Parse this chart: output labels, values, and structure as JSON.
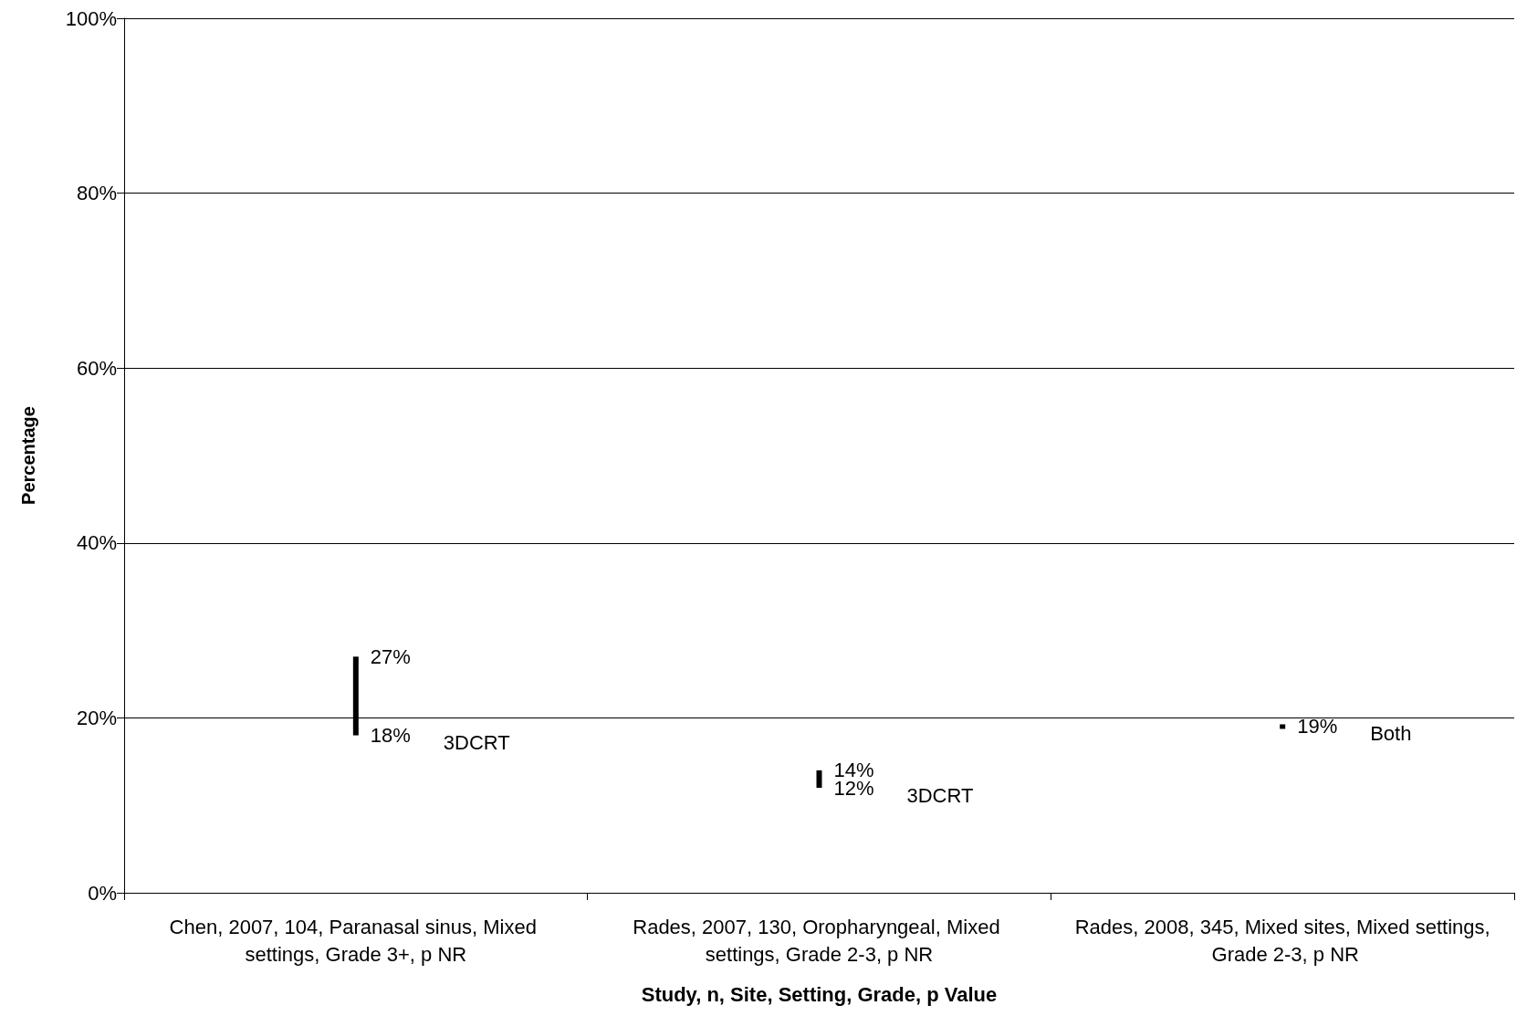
{
  "chart_data": {
    "type": "bar",
    "categories": [
      "Chen, 2007, 104, Paranasal sinus, Mixed settings, Grade 3+, p NR",
      "Rades, 2007, 130, Oropharyngeal, Mixed settings, Grade 2-3, p NR",
      "Rades, 2008, 345, Mixed sites, Mixed settings, Grade 2-3, p NR"
    ],
    "base": [
      18,
      12,
      19
    ],
    "values": [
      9,
      2,
      0
    ],
    "color": "#000000",
    "xlabel": "Study, n, Site, Setting, Grade, p Value",
    "ylabel": "Percentage",
    "ylim": [
      0,
      100
    ],
    "yticks": [
      {
        "value": 0,
        "label": "0%"
      },
      {
        "value": 20,
        "label": "20%"
      },
      {
        "value": 40,
        "label": "40%"
      },
      {
        "value": 60,
        "label": "60%"
      },
      {
        "value": 80,
        "label": "80%"
      },
      {
        "value": 100,
        "label": "100%"
      }
    ],
    "grid": "y",
    "annotations": [
      {
        "text": "27%",
        "x": "Chen, 2007, 104, Paranasal sinus, Mixed settings, Grade 3+, p NR",
        "y": 27
      },
      {
        "text": "18%",
        "x": "Chen, 2007, 104, Paranasal sinus, Mixed settings, Grade 3+, p NR",
        "y": 18
      },
      "3DCRT",
      {
        "text": "14%",
        "x": "Rades, 2007, 130, Oropharyngeal, Mixed settings, Grade 2-3, p NR",
        "y": 14
      },
      {
        "text": "12%",
        "x": "Rades, 2007, 130, Oropharyngeal, Mixed settings, Grade 2-3, p NR",
        "y": 12
      },
      "3DCRT",
      {
        "text": "19%",
        "x": "Rades, 2008, 345, Mixed sites, Mixed settings, Grade 2-3, p NR",
        "y": 19
      },
      "Both"
    ]
  }
}
